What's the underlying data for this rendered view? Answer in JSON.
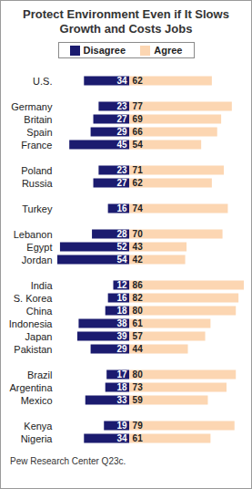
{
  "chart_data": {
    "type": "bar",
    "orientation": "horizontal",
    "title": "Protect Environment Even if It Slows Growth and Costs Jobs",
    "categories": [
      "U.S.",
      null,
      "Germany",
      "Britain",
      "Spain",
      "France",
      null,
      "Poland",
      "Russia",
      null,
      "Turkey",
      null,
      "Lebanon",
      "Egypt",
      "Jordan",
      null,
      "India",
      "S. Korea",
      "China",
      "Indonesia",
      "Japan",
      "Pakistan",
      null,
      "Brazil",
      "Argentina",
      "Mexico",
      null,
      "Kenya",
      "Nigeria"
    ],
    "series": [
      {
        "name": "Disagree",
        "color": "#1b1b6f",
        "values": [
          34,
          null,
          23,
          27,
          29,
          45,
          null,
          23,
          27,
          null,
          16,
          null,
          28,
          52,
          54,
          null,
          12,
          16,
          18,
          38,
          39,
          29,
          null,
          17,
          18,
          33,
          null,
          19,
          34
        ]
      },
      {
        "name": "Agree",
        "color": "#fcd6b2",
        "values": [
          62,
          null,
          77,
          69,
          66,
          54,
          null,
          71,
          62,
          null,
          74,
          null,
          70,
          43,
          42,
          null,
          86,
          82,
          80,
          61,
          57,
          44,
          null,
          80,
          73,
          59,
          null,
          79,
          61
        ]
      }
    ],
    "xlim": [
      -54,
      86
    ],
    "tick_labels": "y",
    "data_labels": true,
    "legend": "top",
    "caption": "Pew Research Center Q23c."
  }
}
